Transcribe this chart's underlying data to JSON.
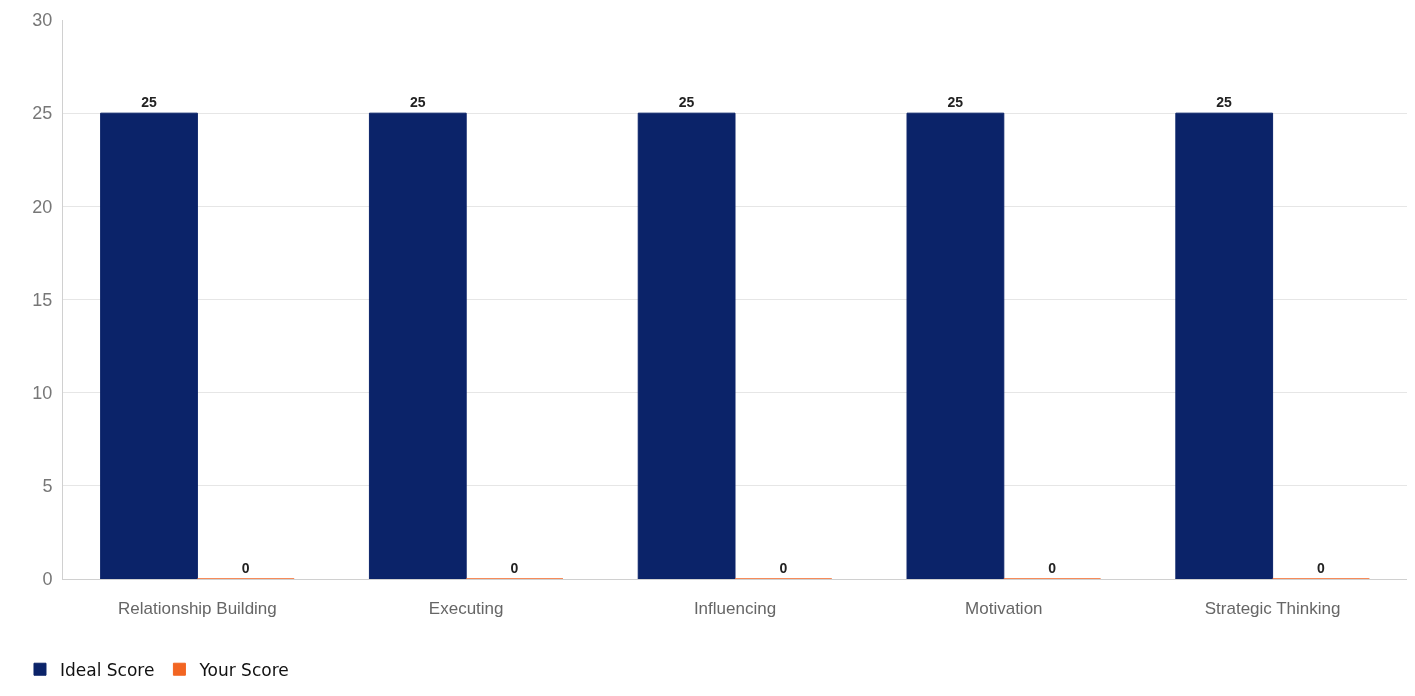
{
  "chart_data": {
    "type": "bar",
    "categories": [
      "Relationship Building",
      "Executing",
      "Influencing",
      "Motivation",
      "Strategic Thinking"
    ],
    "series": [
      {
        "name": "Ideal Score",
        "color": "#0b2369",
        "values": [
          25,
          25,
          25,
          25,
          25
        ]
      },
      {
        "name": "Your Score",
        "color": "#f26522",
        "values": [
          0,
          0,
          0,
          0,
          0
        ]
      }
    ],
    "ylim": [
      0,
      30
    ],
    "yticks": [
      0,
      5,
      10,
      15,
      20,
      25,
      30
    ],
    "grid": "y",
    "legend": "bottom left",
    "data_labels": true
  }
}
